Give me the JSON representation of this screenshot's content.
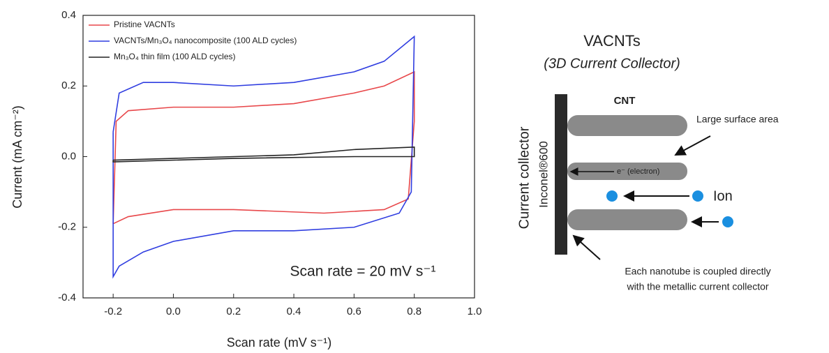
{
  "chart_data": {
    "type": "line",
    "xlabel": "Scan rate (mV s⁻¹)",
    "ylabel": "Current (mA cm⁻²)",
    "annotation": "Scan rate = 20 mV s⁻¹",
    "xlim": [
      -0.3,
      1.0
    ],
    "xticks": [
      -0.2,
      {
        "value": 0,
        "label": "0.0"
      },
      0.2,
      0.4,
      0.6,
      0.8,
      {
        "value": 1,
        "label": "1.0"
      }
    ],
    "ylim": [
      -0.4,
      0.4
    ],
    "yticks": [
      -0.4,
      -0.2,
      {
        "value": 0,
        "label": "0.0"
      },
      0.2,
      0.4
    ],
    "grid": false,
    "legend": "upper left",
    "series": [
      {
        "name": "Pristine VACNTs",
        "color": "#e8474a",
        "x": [
          -0.2,
          -0.19,
          -0.15,
          0,
          0.2,
          0.4,
          0.6,
          0.7,
          0.8,
          0.8,
          0.78,
          0.7,
          0.5,
          0.2,
          0,
          -0.15,
          -0.2
        ],
        "values": [
          -0.19,
          0.1,
          0.13,
          0.14,
          0.14,
          0.15,
          0.18,
          0.2,
          0.24,
          0.1,
          -0.12,
          -0.15,
          -0.16,
          -0.15,
          -0.15,
          -0.17,
          -0.19
        ]
      },
      {
        "name": "VACNTs/Mn₃O₄ nanocomposite (100 ALD cycles)",
        "color": "#2f3de0",
        "x": [
          -0.2,
          -0.18,
          -0.1,
          0,
          0.2,
          0.4,
          0.6,
          0.7,
          0.8,
          0.79,
          0.75,
          0.6,
          0.4,
          0.2,
          0,
          -0.1,
          -0.18,
          -0.2,
          -0.2
        ],
        "values": [
          0.07,
          0.18,
          0.21,
          0.21,
          0.2,
          0.21,
          0.24,
          0.27,
          0.34,
          -0.1,
          -0.16,
          -0.2,
          -0.21,
          -0.21,
          -0.24,
          -0.27,
          -0.31,
          -0.34,
          0.07
        ]
      },
      {
        "name": "Mn₃O₄ thin film (100 ALD cycles)",
        "color": "#222222",
        "x": [
          -0.2,
          0,
          0.4,
          0.6,
          0.8,
          0.8,
          0.6,
          0.2,
          -0.2,
          -0.2
        ],
        "values": [
          -0.01,
          -0.005,
          0.005,
          0.02,
          0.027,
          0.0,
          0.0,
          -0.005,
          -0.015,
          -0.01
        ]
      }
    ]
  },
  "diagram": {
    "title": "VACNTs",
    "subtitle": "(3D Current Collector)",
    "cnt": "CNT",
    "surface": "Large surface area",
    "electron": "e⁻ (electron)",
    "ion": "Ion",
    "collector": "Current collector",
    "material": "Inconel®600",
    "note_line1": "Each nanotube is coupled directly",
    "note_line2": "with the metallic current collector"
  }
}
